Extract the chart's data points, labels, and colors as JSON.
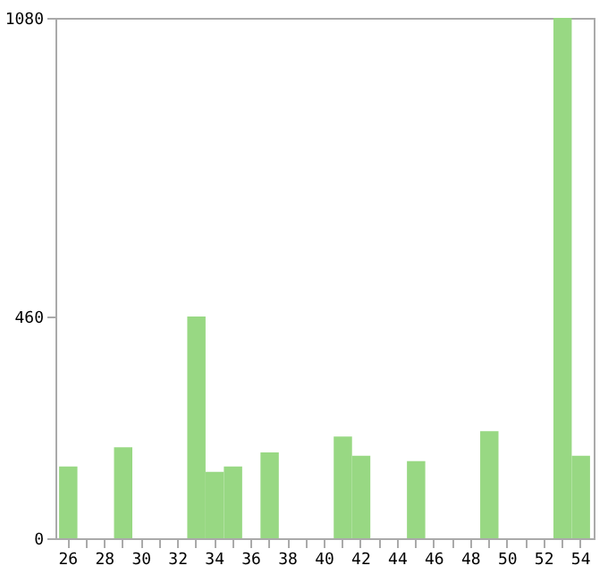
{
  "chart_data": {
    "type": "bar",
    "categories": [
      "26",
      null,
      "28",
      null,
      "30",
      null,
      "32",
      null,
      "34",
      null,
      "36",
      null,
      "38",
      null,
      "40",
      null,
      "42",
      null,
      "44",
      null,
      "46",
      null,
      "48",
      null,
      "50",
      null,
      "52",
      null,
      "54"
    ],
    "values": [
      149,
      0,
      0,
      189,
      0,
      0,
      0,
      460,
      138,
      149,
      0,
      178,
      0,
      0,
      0,
      211,
      171,
      0,
      0,
      160,
      0,
      0,
      0,
      222,
      0,
      0,
      0,
      1080,
      171
    ],
    "color": "#98d883",
    "ylim": [
      0,
      1080
    ],
    "yticks": [
      0,
      460,
      1080
    ],
    "grid": false
  }
}
